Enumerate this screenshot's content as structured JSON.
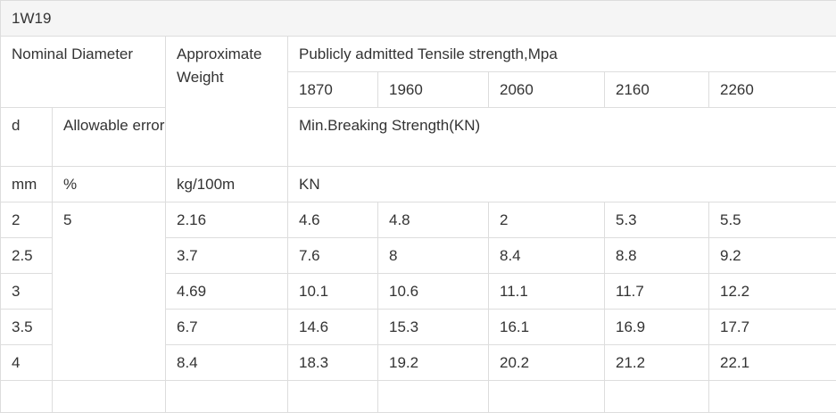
{
  "table": {
    "title": "1W19",
    "header": {
      "nominal_diameter": "Nominal Diameter",
      "approx_weight": "Approximate Weight",
      "tensile_strength": "Publicly admitted Tensile strength,Mpa",
      "grades": [
        "1870",
        "1960",
        "2060",
        "2160",
        "2260"
      ],
      "d": "d",
      "allowable_error": "Allowable error",
      "min_breaking": "Min.Breaking Strength(KN)"
    },
    "units": {
      "d": "mm",
      "error": "%",
      "weight": "kg/100m",
      "strength": "KN"
    },
    "allowable_error_value": "5",
    "rows": [
      {
        "d": "2",
        "weight": "2.16",
        "values": [
          "4.6",
          "4.8",
          "2",
          "5.3",
          "5.5"
        ]
      },
      {
        "d": "2.5",
        "weight": "3.7",
        "values": [
          "7.6",
          "8",
          "8.4",
          "8.8",
          "9.2"
        ]
      },
      {
        "d": "3",
        "weight": "4.69",
        "values": [
          "10.1",
          "10.6",
          "11.1",
          "11.7",
          "12.2"
        ]
      },
      {
        "d": "3.5",
        "weight": "6.7",
        "values": [
          "14.6",
          "15.3",
          "16.1",
          "16.9",
          "17.7"
        ]
      },
      {
        "d": "4",
        "weight": "8.4",
        "values": [
          "18.3",
          "19.2",
          "20.2",
          "21.2",
          "22.1"
        ]
      }
    ]
  }
}
